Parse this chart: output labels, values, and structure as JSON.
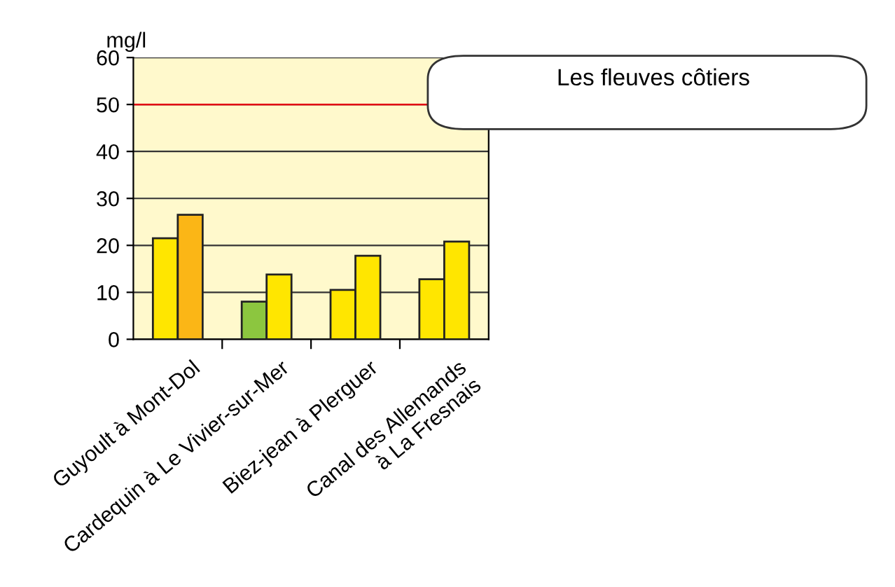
{
  "chart_data": {
    "type": "bar",
    "title": "Les fleuves côtiers",
    "ylabel": "mg/l",
    "categories": [
      "Guyoult à Mont-Dol",
      "Cardequin à Le Vivier-sur-Mer",
      "Biez-jean à Plerguer",
      "Canal des Allemands\nà La Fresnais"
    ],
    "series": [
      {
        "colors": [
          "#ffe600",
          "#8cc63f",
          "#ffe600",
          "#ffe600"
        ],
        "values": [
          21.5,
          8,
          10.5,
          12.8
        ]
      },
      {
        "colors": [
          "#fbb616",
          "#ffe600",
          "#ffe600",
          "#ffe600"
        ],
        "values": [
          26.5,
          13.8,
          17.8,
          20.8
        ]
      }
    ],
    "ylim": [
      0,
      60
    ],
    "yticks": [
      0,
      10,
      20,
      30,
      40,
      50,
      60
    ],
    "grid": "y",
    "ref_lines": [
      {
        "axis": "y",
        "value": 50,
        "color": "#e30613"
      }
    ],
    "legend": false
  }
}
